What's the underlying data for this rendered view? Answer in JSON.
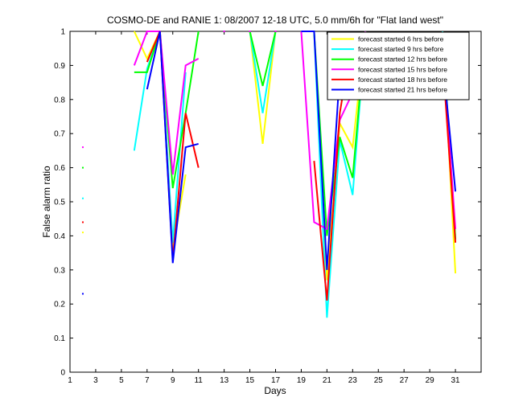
{
  "chart_data": {
    "type": "line",
    "title": "COSMO-DE and RANIE 1: 08/2007 12-18 UTC, 5.0 mm/6h for \"Flat land west\"",
    "xlabel": "Days",
    "ylabel": "False alarm ratio",
    "xlim": [
      1,
      33
    ],
    "ylim": [
      0,
      1
    ],
    "xticks": [
      "1",
      "3",
      "5",
      "7",
      "9",
      "11",
      "13",
      "15",
      "17",
      "19",
      "21",
      "23",
      "25",
      "27",
      "29",
      "31"
    ],
    "yticks": [
      "0",
      "0.1",
      "0.2",
      "0.3",
      "0.4",
      "0.5",
      "0.6",
      "0.7",
      "0.8",
      "0.9",
      "1"
    ],
    "grid": false,
    "legend_position": "top-right",
    "series": [
      {
        "name": "forecast started 6 hrs before",
        "color": "#ffff00",
        "values": [
          null,
          0.41,
          null,
          null,
          null,
          1.0,
          0.92,
          1.0,
          0.36,
          0.58,
          null,
          null,
          null,
          null,
          1.0,
          0.67,
          1.0,
          null,
          1.0,
          1.0,
          0.27,
          0.73,
          0.66,
          1.0,
          null,
          null,
          null,
          null,
          null,
          1.0,
          0.29
        ]
      },
      {
        "name": "forecast started 9 hrs before",
        "color": "#00ffff",
        "values": [
          null,
          0.51,
          null,
          null,
          null,
          0.65,
          0.89,
          1.0,
          0.38,
          0.88,
          null,
          null,
          null,
          null,
          1.0,
          0.76,
          1.0,
          null,
          1.0,
          1.0,
          0.16,
          0.68,
          0.52,
          1.0,
          null,
          null,
          null,
          null,
          null,
          1.0,
          0.39
        ]
      },
      {
        "name": "forecast started 12 hrs before",
        "color": "#00ff00",
        "values": [
          null,
          0.6,
          null,
          null,
          null,
          0.88,
          0.88,
          1.0,
          0.54,
          0.76,
          1.0,
          null,
          null,
          null,
          1.0,
          0.84,
          1.0,
          null,
          1.0,
          1.0,
          0.4,
          0.69,
          0.57,
          1.0,
          null,
          null,
          null,
          null,
          null,
          0.99,
          0.39
        ]
      },
      {
        "name": "forecast started 15 hrs before",
        "color": "#ff00ff",
        "values": [
          null,
          0.66,
          null,
          null,
          null,
          0.9,
          1.0,
          1.0,
          0.58,
          0.9,
          0.92,
          null,
          1.0,
          null,
          1.0,
          null,
          1.0,
          null,
          1.0,
          0.44,
          0.42,
          0.74,
          0.82,
          1.0,
          null,
          null,
          null,
          null,
          null,
          0.96,
          0.42
        ]
      },
      {
        "name": "forecast started 18 hrs before",
        "color": "#ff0000",
        "values": [
          null,
          0.44,
          null,
          null,
          null,
          null,
          0.91,
          1.0,
          0.33,
          0.76,
          0.6,
          null,
          null,
          null,
          null,
          null,
          null,
          null,
          null,
          0.62,
          0.21,
          0.76,
          0.99,
          null,
          null,
          null,
          null,
          null,
          null,
          0.92,
          0.38
        ]
      },
      {
        "name": "forecast started 21 hrs before",
        "color": "#0000ff",
        "values": [
          null,
          0.23,
          null,
          null,
          null,
          null,
          0.83,
          1.0,
          0.32,
          0.66,
          0.67,
          null,
          null,
          null,
          null,
          null,
          null,
          null,
          1.0,
          1.0,
          0.3,
          0.88,
          0.91,
          null,
          null,
          null,
          null,
          null,
          null,
          0.92,
          0.53
        ]
      }
    ]
  }
}
